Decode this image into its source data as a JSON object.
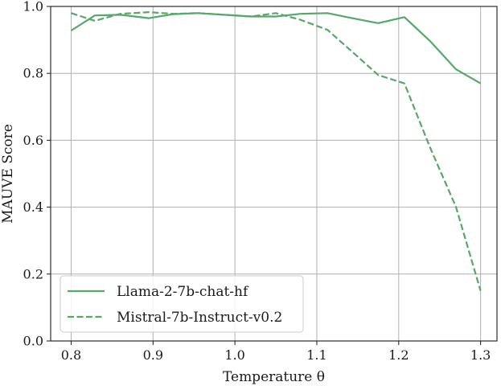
{
  "chart_data": {
    "type": "line",
    "xlabel": "Temperature θ",
    "ylabel": "MAUVE Score",
    "xlim": [
      0.775,
      1.32
    ],
    "ylim": [
      0.0,
      1.0
    ],
    "x_ticks": [
      "0.8",
      "0.9",
      "1.0",
      "1.1",
      "1.2",
      "1.3"
    ],
    "y_ticks": [
      "0.0",
      "0.2",
      "0.4",
      "0.6",
      "0.8",
      "1.0"
    ],
    "grid": true,
    "legend_position": "lower-left",
    "color": "#55a868",
    "series": [
      {
        "name": "Llama-2-7b-chat-hf",
        "linestyle": "solid",
        "x": [
          0.8,
          0.829,
          0.86,
          0.895,
          0.925,
          0.955,
          0.987,
          1.02,
          1.05,
          1.08,
          1.113,
          1.143,
          1.175,
          1.207,
          1.238,
          1.27,
          1.3
        ],
        "y": [
          0.928,
          0.973,
          0.975,
          0.965,
          0.977,
          0.98,
          0.975,
          0.97,
          0.97,
          0.978,
          0.98,
          0.965,
          0.95,
          0.968,
          0.897,
          0.812,
          0.77
        ]
      },
      {
        "name": "Mistral-7b-Instruct-v0.2",
        "linestyle": "dashed",
        "x": [
          0.8,
          0.829,
          0.86,
          0.895,
          0.925,
          0.955,
          0.987,
          1.02,
          1.05,
          1.08,
          1.113,
          1.143,
          1.175,
          1.207,
          1.238,
          1.27,
          1.3
        ],
        "y": [
          0.98,
          0.957,
          0.978,
          0.983,
          0.978,
          0.98,
          0.975,
          0.97,
          0.98,
          0.96,
          0.93,
          0.865,
          0.795,
          0.77,
          0.58,
          0.4,
          0.15
        ]
      }
    ]
  }
}
